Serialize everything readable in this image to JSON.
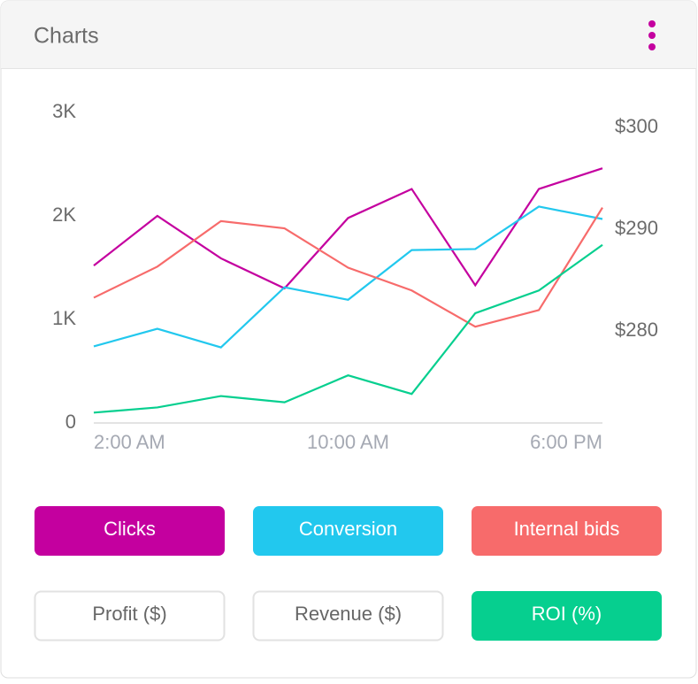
{
  "header": {
    "title": "Charts"
  },
  "chart_data": {
    "type": "line",
    "categories": [
      "2:00 AM",
      null,
      null,
      null,
      "10:00 AM",
      null,
      null,
      null,
      "6:00 PM"
    ],
    "series": [
      {
        "name": "Clicks",
        "color": "#c4009f",
        "values": [
          1520,
          2000,
          1590,
          1300,
          1980,
          2260,
          1330,
          2260,
          2460
        ]
      },
      {
        "name": "Conversion",
        "color": "#22c8ee",
        "values": [
          740,
          910,
          730,
          1310,
          1190,
          1670,
          1680,
          2090,
          1970
        ]
      },
      {
        "name": "Internal bids",
        "color": "#f76b6b",
        "values": [
          1210,
          1510,
          1950,
          1880,
          1500,
          1280,
          930,
          1090,
          2080
        ]
      },
      {
        "name": "ROI (%)",
        "color": "#06cf8f",
        "values": [
          100,
          150,
          260,
          200,
          460,
          280,
          1060,
          1280,
          1720
        ]
      }
    ],
    "ylim": [
      0,
      3000
    ],
    "yticks": [
      0,
      {
        "value": 1000,
        "label": "1K"
      },
      {
        "value": 2000,
        "label": "2K"
      },
      {
        "value": 3000,
        "label": "3K"
      }
    ],
    "y2lim": [
      271,
      301.5
    ],
    "y2ticks": [
      {
        "value": 280,
        "label": "$280"
      },
      {
        "value": 290,
        "label": "$290"
      },
      {
        "value": 300,
        "label": "$300"
      }
    ],
    "grid": false
  },
  "inactive_toggles": [
    "Profit ($)",
    "Revenue ($)"
  ]
}
